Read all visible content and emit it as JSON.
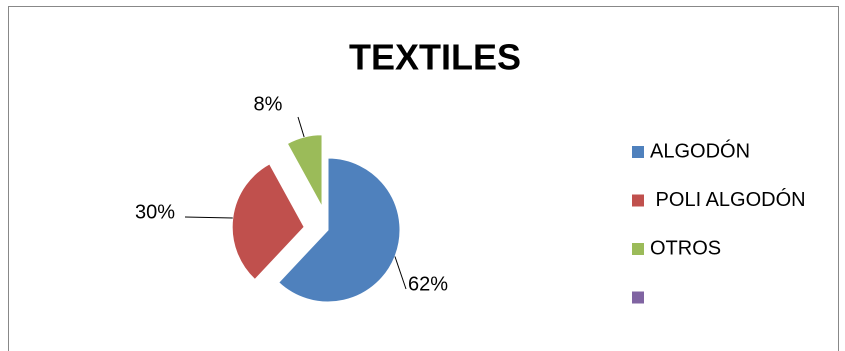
{
  "chart_data": {
    "type": "pie",
    "title": "TEXTILES",
    "categories": [
      "ALGODÓN",
      " POLI ALGODÓN",
      "OTROS",
      null
    ],
    "values": [
      62,
      30,
      8,
      0
    ],
    "value_labels": [
      "62%",
      "30%",
      "8%",
      null
    ],
    "colors": [
      "#4f81bd",
      "#c0504d",
      "#9bbb59",
      "#8064a2"
    ],
    "legend": "right"
  }
}
